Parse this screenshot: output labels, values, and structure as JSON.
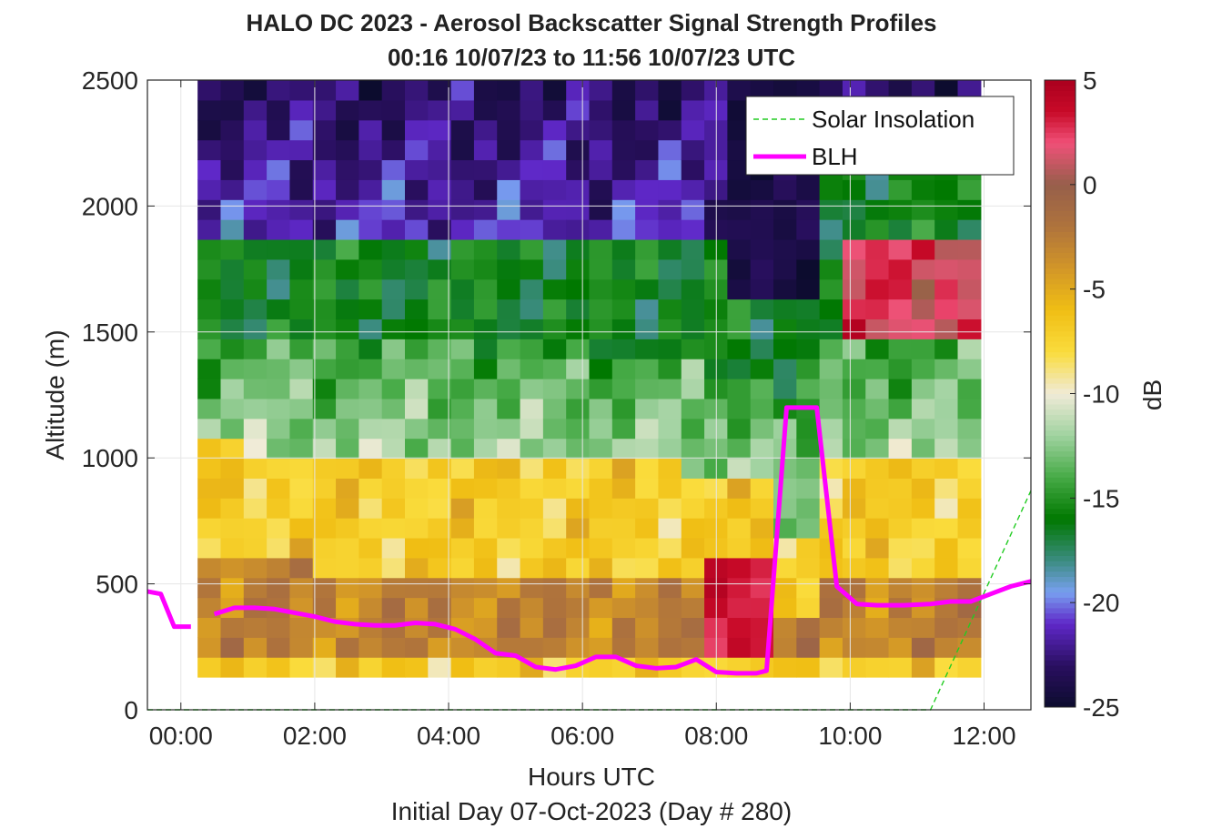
{
  "chart_data": {
    "type": "heatmap",
    "title": "HALO DC 2023 - Aerosol Backscatter Signal Strength Profiles",
    "subtitle": "00:16 10/07/23 to 11:56 10/07/23  UTC",
    "xlabel": "Hours UTC",
    "x_sublabel": "Initial Day 07-Oct-2023 (Day # 280)",
    "ylabel": "Altitude (m)",
    "colorbar_label": "dB",
    "xlim": [
      -0.5,
      12.7
    ],
    "ylim": [
      0,
      2500
    ],
    "x_ticks": [
      "00:00",
      "02:00",
      "04:00",
      "06:00",
      "08:00",
      "10:00",
      "12:00"
    ],
    "x_tick_values": [
      0,
      2,
      4,
      6,
      8,
      10,
      12
    ],
    "y_ticks": [
      0,
      500,
      1000,
      1500,
      2000,
      2500
    ],
    "clim": [
      -25,
      5
    ],
    "colorbar_ticks": [
      5,
      0,
      -5,
      -10,
      -15,
      -20,
      -25
    ],
    "grid": true,
    "legend_position": "top-right",
    "heatmap_time_range_hours": [
      0.25,
      11.95
    ],
    "heatmap_altitude_range_m": [
      130,
      2500
    ],
    "series": [
      {
        "name": "Solar Insolation",
        "style": "dashed",
        "color": "#22cc22",
        "x": [
          -0.5,
          11.2,
          12.7
        ],
        "y": [
          0,
          0,
          870
        ]
      },
      {
        "name": "BLH",
        "style": "solid",
        "color": "#ff00ff",
        "segments": [
          {
            "x": [
              -0.5,
              -0.3,
              -0.1,
              0.15
            ],
            "y": [
              470,
              460,
              330,
              330
            ]
          },
          {
            "x": [
              0.5,
              0.8,
              1.1,
              1.4,
              1.7,
              2.0,
              2.3,
              2.6,
              2.9,
              3.2,
              3.5,
              3.8,
              4.1,
              4.4,
              4.7,
              5.0,
              5.3,
              5.6,
              5.9,
              6.2,
              6.5,
              6.8,
              7.1,
              7.4,
              7.7,
              8.0,
              8.3,
              8.6,
              8.75,
              9.05,
              9.2,
              9.5,
              9.8,
              10.1,
              10.4,
              10.8,
              11.2,
              11.5,
              11.8,
              12.1,
              12.4,
              12.7
            ],
            "y": [
              380,
              405,
              405,
              400,
              385,
              370,
              350,
              340,
              335,
              335,
              345,
              340,
              320,
              280,
              225,
              215,
              170,
              160,
              175,
              210,
              210,
              175,
              165,
              170,
              200,
              150,
              145,
              145,
              155,
              1200,
              1200,
              1200,
              490,
              420,
              415,
              415,
              420,
              430,
              430,
              460,
              490,
              510
            ]
          }
        ]
      }
    ]
  }
}
